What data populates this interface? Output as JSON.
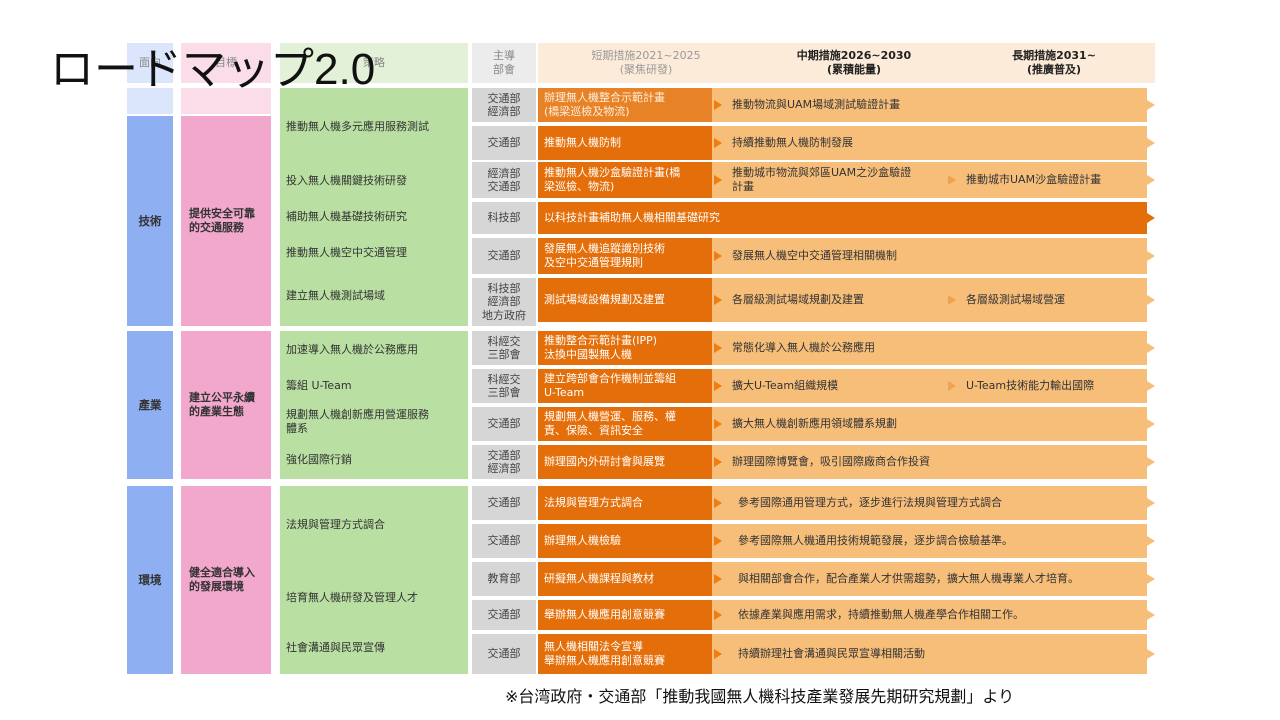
{
  "title": "ロードマップ2.0",
  "source_note": "※台湾政府・交通部「推動我國無人機科技產業發展先期研究規劃」より",
  "colors": {
    "category_blue": "#8eb0f2",
    "goal_pink": "#f2a8cc",
    "strategy_green": "#b9dfa2",
    "dept_gray": "#d6d6d6",
    "short_orange": "#e46f0a",
    "band_light_orange": "#f7be7a",
    "arrow_orange": "#f07d0c"
  },
  "header": {
    "col_area": "面向",
    "col_goal": "目標",
    "col_strategy": "策略",
    "col_dept": "主導\n部會",
    "short_term": "短期措施2021~2025\n(聚焦研發)",
    "mid_term": "中期措施2026~2030\n(累積能量)",
    "long_term": "長期措施2031~\n(推廣普及)"
  },
  "sections": [
    {
      "area": "技術",
      "goal": "提供安全可靠\n的交通服務",
      "strategies": [
        "推動無人機多元應用服務測試",
        "投入無人機關鍵技術研發",
        "補助無人機基礎技術研究",
        "推動無人機空中交通管理",
        "建立無人機測試場域"
      ],
      "rows": [
        {
          "dept": "交通部\n經濟部",
          "short": "辦理無人機整合示範計畫\n(橋梁巡檢及物流)",
          "mid": "推動物流與UAM場域測試驗證計畫",
          "long": ""
        },
        {
          "dept": "交通部",
          "short": "推動無人機防制",
          "mid": "持續推動無人機防制發展",
          "long": ""
        },
        {
          "dept": "經濟部\n交通部",
          "short": "推動無人機沙盒驗證計畫(橋\n梁巡檢、物流)",
          "mid": "推動城市物流與郊區UAM之沙盒驗證\n計畫",
          "long": "推動城市UAM沙盒驗證計畫"
        },
        {
          "dept": "科技部",
          "short": "以科技計畫補助無人機相關基礎研究",
          "mid": "",
          "long": ""
        },
        {
          "dept": "交通部",
          "short": "發展無人機追蹤識別技術\n及空中交通管理規則",
          "mid": "發展無人機空中交通管理相關機制",
          "long": ""
        },
        {
          "dept": "科技部\n經濟部\n地方政府",
          "short": "測試場域設備規劃及建置",
          "mid": "各層級測試場域規劃及建置",
          "long": "各層級測試場域營運"
        }
      ]
    },
    {
      "area": "產業",
      "goal": "建立公平永續\n的產業生態",
      "strategies": [
        "加速導入無人機於公務應用",
        "籌組 U-Team",
        "規劃無人機創新應用營運服務\n體系",
        "強化國際行銷"
      ],
      "rows": [
        {
          "dept": "科經交\n三部會",
          "short": "推動整合示範計畫(IPP)\n汰換中國製無人機",
          "mid": "常態化導入無人機於公務應用",
          "long": ""
        },
        {
          "dept": "科經交\n三部會",
          "short": "建立跨部會合作機制並籌組\nU-Team",
          "mid": "擴大U-Team組織規模",
          "long": "U-Team技術能力輸出國際"
        },
        {
          "dept": "交通部",
          "short": "規劃無人機營運、服務、權\n責、保險、資訊安全",
          "mid": "擴大無人機創新應用領域體系規劃",
          "long": ""
        },
        {
          "dept": "交通部\n經濟部",
          "short": "辦理國內外研討會與展覽",
          "mid": "辦理國際博覽會，吸引國際廠商合作投資",
          "long": ""
        }
      ]
    },
    {
      "area": "環境",
      "goal": "健全適合導入\n的發展環境",
      "strategies": [
        "法規與管理方式調合",
        "培育無人機研發及管理人才",
        "社會溝通與民眾宣傳"
      ],
      "rows": [
        {
          "dept": "交通部",
          "short": "法規與管理方式調合",
          "mid": "參考國際通用管理方式，逐步進行法規與管理方式調合",
          "long": ""
        },
        {
          "dept": "交通部",
          "short": "辦理無人機檢驗",
          "mid": "參考國際無人機通用技術規範發展，逐步調合檢驗基準。",
          "long": ""
        },
        {
          "dept": "教育部",
          "short": "研擬無人機課程與教材",
          "mid": "與相關部會合作，配合產業人才供需趨勢，擴大無人機專業人才培育。",
          "long": ""
        },
        {
          "dept": "交通部",
          "short": "舉辦無人機應用創意競賽",
          "mid": "依據產業與應用需求，持續推動無人機產學合作相關工作。",
          "long": ""
        },
        {
          "dept": "交通部",
          "short": "無人機相關法令宣導\n舉辦無人機應用創意競賽",
          "mid": "持續辦理社會溝通與民眾宣導相關活動",
          "long": ""
        }
      ]
    }
  ]
}
